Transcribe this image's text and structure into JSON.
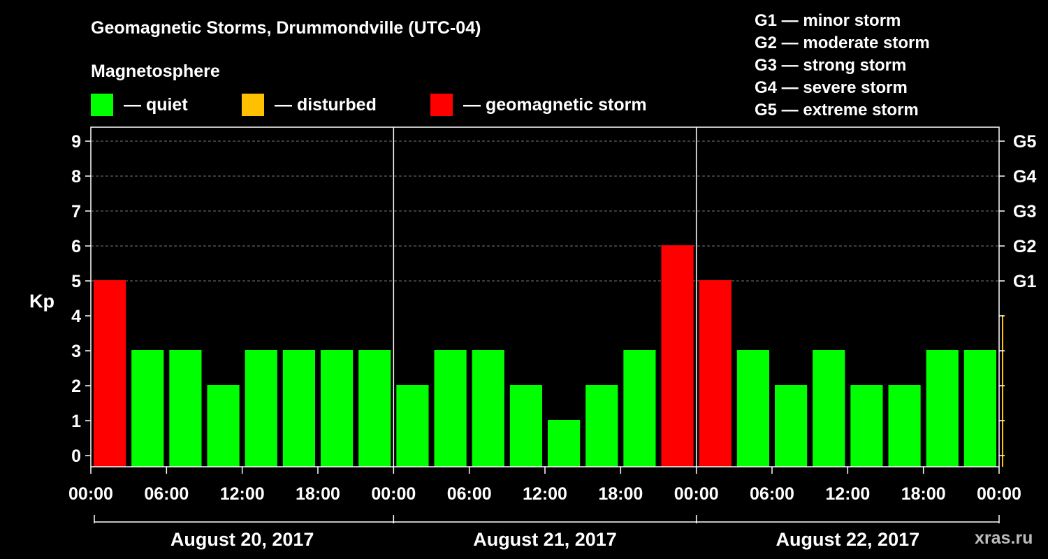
{
  "chart_data": {
    "type": "bar",
    "title": "Geomagnetic Storms, Drummondville (UTC-04)",
    "ylabel": "Kp",
    "ylim": [
      0,
      9
    ],
    "y_ticks": [
      "0",
      "1",
      "2",
      "3",
      "4",
      "5",
      "6",
      "7",
      "8",
      "9"
    ],
    "storm_scale_ticks": [
      {
        "kp": 5,
        "label": "G1"
      },
      {
        "kp": 6,
        "label": "G2"
      },
      {
        "kp": 7,
        "label": "G3"
      },
      {
        "kp": 8,
        "label": "G4"
      },
      {
        "kp": 9,
        "label": "G5"
      }
    ],
    "storm_scale_legend": [
      "G1 — minor storm",
      "G2 — moderate storm",
      "G3 — strong storm",
      "G4 — severe storm",
      "G5 — extreme storm"
    ],
    "legend_title": "Magnetosphere",
    "legend": [
      {
        "label": "— quiet",
        "color": "#00ff00"
      },
      {
        "label": "— disturbed",
        "color": "#ffc000"
      },
      {
        "label": "— geomagnetic storm",
        "color": "#ff0000"
      }
    ],
    "x_tick_labels": [
      "00:00",
      "06:00",
      "12:00",
      "18:00",
      "00:00",
      "06:00",
      "12:00",
      "18:00",
      "00:00",
      "06:00",
      "12:00",
      "18:00",
      "00:00"
    ],
    "days": [
      "August 20, 2017",
      "August 21, 2017",
      "August 22, 2017"
    ],
    "grid": true,
    "values": [
      5,
      3,
      3,
      2,
      3,
      3,
      3,
      3,
      2,
      3,
      3,
      2,
      1,
      2,
      3,
      6,
      5,
      3,
      2,
      3,
      2,
      2,
      3,
      3,
      4
    ],
    "colors": [
      "#ff0000",
      "#00ff00",
      "#00ff00",
      "#00ff00",
      "#00ff00",
      "#00ff00",
      "#00ff00",
      "#00ff00",
      "#00ff00",
      "#00ff00",
      "#00ff00",
      "#00ff00",
      "#00ff00",
      "#00ff00",
      "#00ff00",
      "#ff0000",
      "#ff0000",
      "#00ff00",
      "#00ff00",
      "#00ff00",
      "#00ff00",
      "#00ff00",
      "#00ff00",
      "#00ff00",
      "#ffc000"
    ]
  },
  "watermark": "xras.ru"
}
